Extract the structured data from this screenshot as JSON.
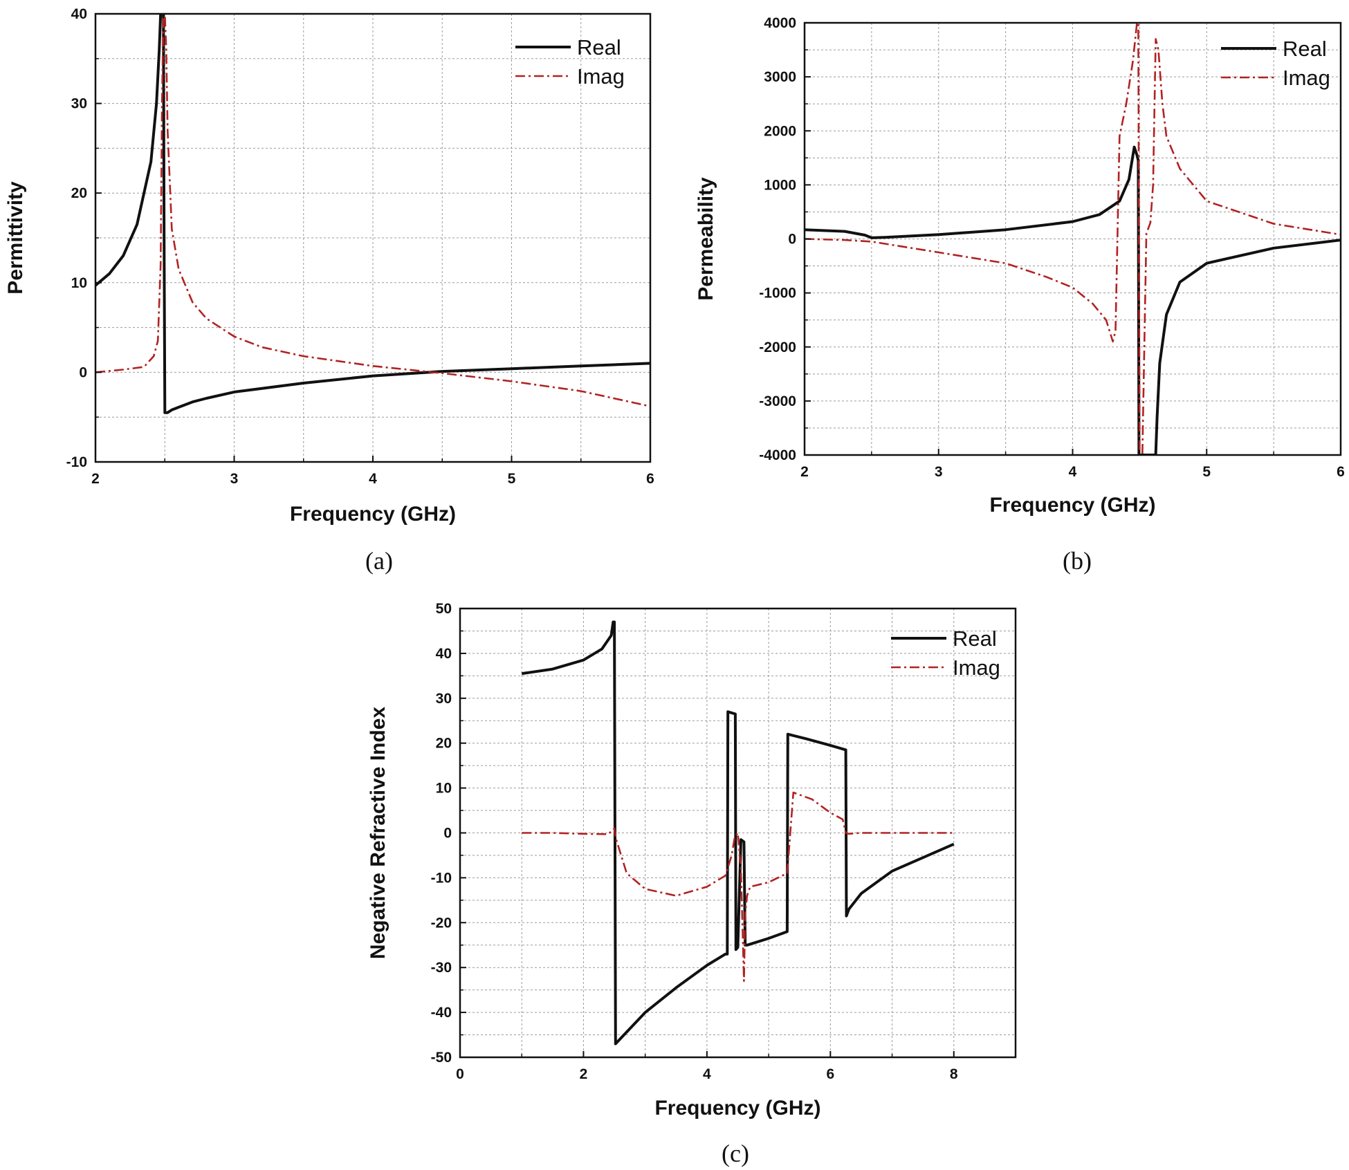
{
  "chart_data": [
    {
      "type": "line",
      "caption": "(a)",
      "xlabel": "Frequency (GHz)",
      "ylabel": "Permittivity",
      "xlim": [
        2,
        6
      ],
      "ylim": [
        -10,
        40
      ],
      "xticks": [
        2,
        3,
        4,
        5,
        6
      ],
      "yticks": [
        -10,
        0,
        10,
        20,
        30,
        40
      ],
      "grid": true,
      "legend_position": "top-right",
      "series": [
        {
          "name": "Real",
          "style": "solid",
          "color": "#111111",
          "x": [
            2.0,
            2.1,
            2.2,
            2.3,
            2.4,
            2.44,
            2.46,
            2.47,
            2.48,
            2.49,
            2.495,
            2.5,
            2.52,
            2.55,
            2.6,
            2.7,
            2.8,
            3.0,
            3.5,
            4.0,
            4.5,
            5.0,
            5.5,
            6.0
          ],
          "y": [
            9.7,
            11.0,
            13.0,
            16.5,
            23.5,
            30.0,
            36.0,
            40.0,
            40.0,
            40.0,
            15.0,
            -4.5,
            -4.5,
            -4.2,
            -3.9,
            -3.3,
            -2.9,
            -2.2,
            -1.2,
            -0.4,
            0.1,
            0.4,
            0.7,
            1.0
          ]
        },
        {
          "name": "Imag",
          "style": "dashdot",
          "color": "#b22222",
          "x": [
            2.0,
            2.2,
            2.35,
            2.42,
            2.45,
            2.47,
            2.48,
            2.49,
            2.5,
            2.51,
            2.52,
            2.55,
            2.6,
            2.7,
            2.8,
            3.0,
            3.2,
            3.5,
            4.0,
            4.5,
            5.0,
            5.5,
            6.0
          ],
          "y": [
            0.0,
            0.3,
            0.6,
            1.8,
            3.5,
            12.0,
            30.0,
            40.0,
            40.0,
            36.0,
            27.0,
            16.0,
            11.5,
            7.8,
            6.0,
            4.0,
            2.8,
            1.8,
            0.7,
            -0.1,
            -1.0,
            -2.1,
            -3.8
          ]
        }
      ]
    },
    {
      "type": "line",
      "caption": "(b)",
      "xlabel": "Frequency (GHz)",
      "ylabel": "Permeability",
      "xlim": [
        2,
        6
      ],
      "ylim": [
        -4000,
        4000
      ],
      "xticks": [
        2,
        3,
        4,
        5,
        6
      ],
      "yticks": [
        -4000,
        -3000,
        -2000,
        -1000,
        0,
        1000,
        2000,
        3000,
        4000
      ],
      "grid": true,
      "legend_position": "top-right",
      "series": [
        {
          "name": "Real",
          "style": "solid",
          "color": "#111111",
          "x": [
            2.0,
            2.3,
            2.45,
            2.5,
            2.6,
            3.0,
            3.5,
            4.0,
            4.2,
            4.35,
            4.42,
            4.46,
            4.48,
            4.49,
            4.495,
            4.5,
            4.6,
            4.62,
            4.63,
            4.65,
            4.7,
            4.8,
            5.0,
            5.5,
            6.0
          ],
          "y": [
            170,
            140,
            70,
            20,
            30,
            80,
            170,
            320,
            450,
            700,
            1100,
            1700,
            1550,
            1450,
            -4000,
            -4000,
            -4000,
            -4000,
            -3300,
            -2300,
            -1400,
            -800,
            -450,
            -170,
            -20
          ]
        },
        {
          "name": "Imag",
          "style": "dashdot",
          "color": "#b22222",
          "x": [
            2.0,
            2.3,
            2.5,
            3.0,
            3.5,
            3.8,
            4.0,
            4.15,
            4.25,
            4.3,
            4.32,
            4.35,
            4.4,
            4.45,
            4.48,
            4.49,
            4.5,
            4.52,
            4.55,
            4.58,
            4.6,
            4.62,
            4.64,
            4.67,
            4.7,
            4.8,
            5.0,
            5.5,
            6.0
          ],
          "y": [
            0,
            -20,
            -50,
            -250,
            -450,
            -700,
            -900,
            -1200,
            -1500,
            -1900,
            -1700,
            1900,
            2500,
            3300,
            4000,
            4000,
            -4000,
            -4000,
            100,
            300,
            1000,
            3700,
            3500,
            2500,
            1900,
            1300,
            700,
            280,
            80
          ]
        }
      ]
    },
    {
      "type": "line",
      "caption": "(c)",
      "xlabel": "Frequency (GHz)",
      "ylabel": "Negative Refractive Index",
      "xlim": [
        0,
        9
      ],
      "ylim": [
        -50,
        50
      ],
      "xticks": [
        0,
        2,
        4,
        6,
        8
      ],
      "yticks": [
        -50,
        -40,
        -30,
        -20,
        -10,
        0,
        10,
        20,
        30,
        40,
        50
      ],
      "grid": true,
      "legend_position": "top-right",
      "series": [
        {
          "name": "Real",
          "style": "solid",
          "color": "#111111",
          "x": [
            1.0,
            1.5,
            2.0,
            2.3,
            2.45,
            2.48,
            2.5,
            2.52,
            3.0,
            3.5,
            4.0,
            4.3,
            4.33,
            4.34,
            4.46,
            4.47,
            4.5,
            4.55,
            4.6,
            4.62,
            4.65,
            5.0,
            5.3,
            5.31,
            5.6,
            6.0,
            6.25,
            6.26,
            6.3,
            6.5,
            7.0,
            7.5,
            8.0
          ],
          "y": [
            35.5,
            36.5,
            38.5,
            41.0,
            44.0,
            47.0,
            47.0,
            -47.0,
            -40.0,
            -34.5,
            -29.5,
            -27.0,
            -27.0,
            27.0,
            26.5,
            -26.0,
            -25.5,
            -1.5,
            -2.0,
            -25.0,
            -25.0,
            -23.5,
            -22.0,
            22.0,
            21.0,
            19.5,
            18.5,
            -18.5,
            -17.0,
            -13.5,
            -8.5,
            -5.5,
            -2.5
          ]
        },
        {
          "name": "Imag",
          "style": "dashdot",
          "color": "#b22222",
          "x": [
            1.0,
            1.5,
            2.0,
            2.4,
            2.5,
            2.52,
            2.7,
            3.0,
            3.5,
            4.0,
            4.3,
            4.4,
            4.45,
            4.5,
            4.55,
            4.6,
            4.62,
            4.65,
            4.7,
            5.0,
            5.3,
            5.4,
            5.7,
            6.0,
            6.2,
            6.25,
            6.3,
            6.5,
            7.0,
            8.0
          ],
          "y": [
            0,
            0,
            -0.2,
            -0.3,
            1.0,
            -1.0,
            -9.0,
            -12.5,
            -14.0,
            -12.0,
            -9.5,
            -5.0,
            -1.0,
            0.0,
            -8.0,
            -33.0,
            -18.0,
            -14.0,
            -12.0,
            -11.0,
            -9.0,
            9.0,
            7.5,
            4.5,
            3.0,
            0.0,
            -0.2,
            0.0,
            0.0,
            0.0
          ]
        }
      ]
    }
  ]
}
